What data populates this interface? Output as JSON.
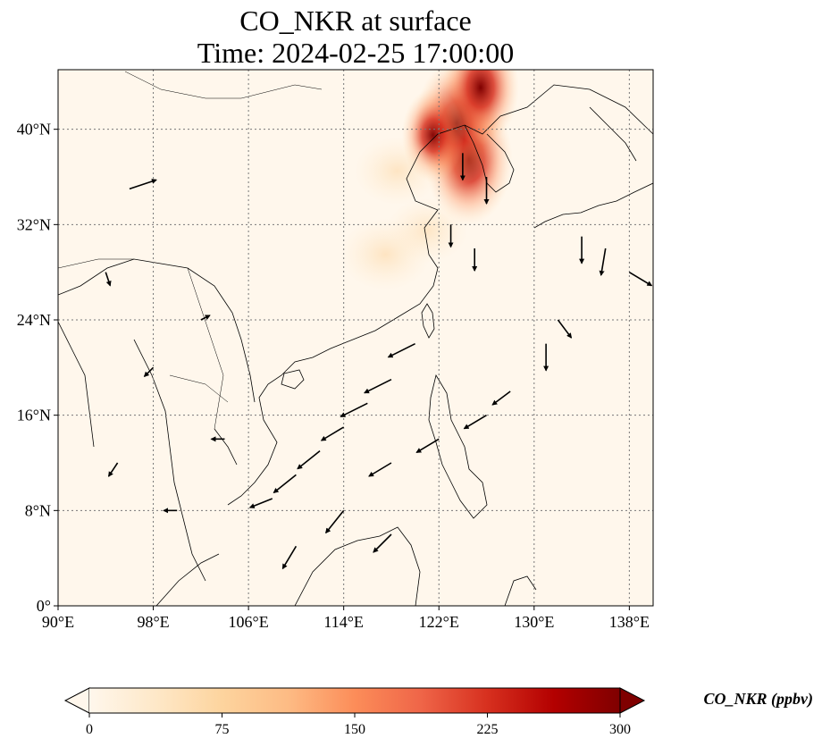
{
  "title": {
    "line1": "CO_NKR at surface",
    "line2": "Time: 2024-02-25 17:00:00"
  },
  "chart_data": {
    "type": "heatmap",
    "variable": "CO_NKR",
    "extent": {
      "lon": [
        90,
        140
      ],
      "lat": [
        0,
        45
      ]
    },
    "x_ticks": [
      "90°E",
      "98°E",
      "106°E",
      "114°E",
      "122°E",
      "130°E",
      "138°E"
    ],
    "x_tick_values": [
      90,
      98,
      106,
      114,
      122,
      130,
      138
    ],
    "y_ticks": [
      "0°",
      "8°N",
      "16°N",
      "24°N",
      "32°N",
      "40°N"
    ],
    "y_tick_values": [
      0,
      8,
      16,
      24,
      32,
      40
    ],
    "grid": true,
    "colormap": "OrRd",
    "colorbar": {
      "label": "CO_NKR (ppbv)",
      "min": 0,
      "max": 300,
      "ticks": [
        "0",
        "75",
        "150",
        "225",
        "300"
      ],
      "tick_values": [
        0,
        75,
        150,
        225,
        300
      ],
      "extend": "both",
      "colors": [
        "#fff7ec",
        "#fee8c8",
        "#fdd49e",
        "#fdbb84",
        "#fc8d59",
        "#ef6548",
        "#d7301f",
        "#b30000",
        "#7f0000"
      ]
    },
    "hotspots": [
      {
        "lon": 124.5,
        "lat": 37.5,
        "value": 290
      },
      {
        "lon": 123.5,
        "lat": 40.5,
        "value": 270
      },
      {
        "lon": 125.5,
        "lat": 43.5,
        "value": 230
      },
      {
        "lon": 121.5,
        "lat": 39.5,
        "value": 150
      },
      {
        "lon": 118.5,
        "lat": 36.5,
        "value": 40
      },
      {
        "lon": 117.5,
        "lat": 29.5,
        "value": 45
      },
      {
        "lon": 121.0,
        "lat": 31.5,
        "value": 35
      }
    ],
    "wind_vectors": [
      {
        "lon": 124,
        "lat": 38,
        "u": 0,
        "v": -3
      },
      {
        "lon": 126,
        "lat": 36,
        "u": 0,
        "v": -3
      },
      {
        "lon": 123,
        "lat": 32,
        "u": 0,
        "v": -2.5
      },
      {
        "lon": 125,
        "lat": 30,
        "u": 0,
        "v": -2.5
      },
      {
        "lon": 134,
        "lat": 31,
        "u": 0,
        "v": -3
      },
      {
        "lon": 136,
        "lat": 30,
        "u": -0.5,
        "v": -3
      },
      {
        "lon": 138,
        "lat": 28,
        "u": 2.5,
        "v": -1.5
      },
      {
        "lon": 131,
        "lat": 22,
        "u": 0,
        "v": -3
      },
      {
        "lon": 132,
        "lat": 24,
        "u": 1.5,
        "v": -2
      },
      {
        "lon": 120,
        "lat": 22,
        "u": -3,
        "v": -1.5
      },
      {
        "lon": 118,
        "lat": 19,
        "u": -3,
        "v": -1.5
      },
      {
        "lon": 116,
        "lat": 17,
        "u": -3,
        "v": -1.5
      },
      {
        "lon": 114,
        "lat": 15,
        "u": -2.5,
        "v": -1.5
      },
      {
        "lon": 112,
        "lat": 13,
        "u": -2.5,
        "v": -2
      },
      {
        "lon": 110,
        "lat": 11,
        "u": -2.5,
        "v": -2
      },
      {
        "lon": 108,
        "lat": 9,
        "u": -2.5,
        "v": -1
      },
      {
        "lon": 118,
        "lat": 12,
        "u": -2.5,
        "v": -1.5
      },
      {
        "lon": 122,
        "lat": 14,
        "u": -2.5,
        "v": -1.5
      },
      {
        "lon": 126,
        "lat": 16,
        "u": -2.5,
        "v": -1.5
      },
      {
        "lon": 128,
        "lat": 18,
        "u": -2,
        "v": -1.5
      },
      {
        "lon": 114,
        "lat": 8,
        "u": -2,
        "v": -2.5
      },
      {
        "lon": 110,
        "lat": 5,
        "u": -1.5,
        "v": -2.5
      },
      {
        "lon": 118,
        "lat": 6,
        "u": -2,
        "v": -2
      },
      {
        "lon": 96,
        "lat": 35,
        "u": 3,
        "v": 1
      },
      {
        "lon": 94,
        "lat": 28,
        "u": 0.5,
        "v": -1.5
      },
      {
        "lon": 102,
        "lat": 24,
        "u": 1,
        "v": 0.5
      },
      {
        "lon": 98,
        "lat": 20,
        "u": -1,
        "v": -1
      },
      {
        "lon": 104,
        "lat": 14,
        "u": -1.5,
        "v": 0
      },
      {
        "lon": 100,
        "lat": 8,
        "u": -1.5,
        "v": 0
      },
      {
        "lon": 95,
        "lat": 12,
        "u": -1,
        "v": -1.5
      }
    ]
  }
}
